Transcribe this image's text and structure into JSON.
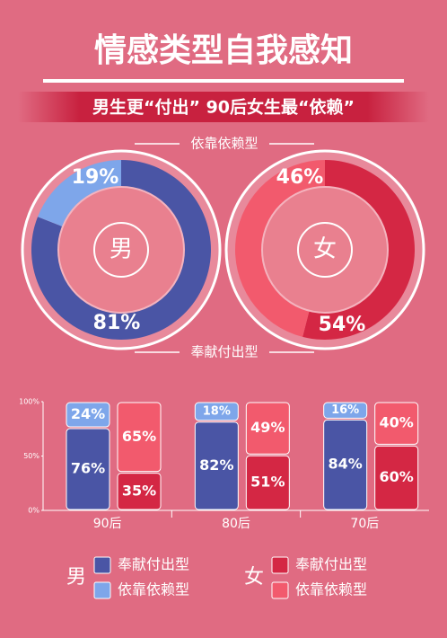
{
  "title": "情感类型自我感知",
  "subtitle": "男生更“付出” 90后女生最“依赖”",
  "chart_data": [
    {
      "type": "donut",
      "center_label": "男",
      "categories": [
        "奉献付出型",
        "依靠依赖型"
      ],
      "values": [
        81,
        19
      ],
      "value_labels": [
        "81%",
        "19%"
      ],
      "colors": [
        "#4a55a5",
        "#7ea6ea"
      ]
    },
    {
      "type": "donut",
      "center_label": "女",
      "values": [
        54,
        46
      ],
      "value_labels": [
        "54%",
        "46%"
      ],
      "colors": [
        "#d42744",
        "#f25a6d"
      ]
    },
    {
      "type": "stacked_bar",
      "categories": [
        "90后",
        "80后",
        "70后"
      ],
      "ylim": [
        0,
        100
      ],
      "yticks": [
        {
          "value": 0,
          "label": "0%"
        },
        {
          "value": 50,
          "label": "50%"
        },
        {
          "value": 100,
          "label": "100%"
        }
      ],
      "series_groups": [
        {
          "name": "男",
          "series": [
            {
              "name": "奉献付出型",
              "color": "#4a55a5",
              "values": [
                76,
                82,
                84
              ],
              "value_labels": [
                "76%",
                "82%",
                "84%"
              ]
            },
            {
              "name": "依靠依赖型",
              "color": "#7ea6ea",
              "values": [
                24,
                18,
                16
              ],
              "value_labels": [
                "24%",
                "18%",
                "16%"
              ]
            }
          ]
        },
        {
          "name": "女",
          "series": [
            {
              "name": "奉献付出型",
              "color": "#d42744",
              "values": [
                35,
                51,
                60
              ],
              "value_labels": [
                "35%",
                "51%",
                "60%"
              ]
            },
            {
              "name": "依靠依赖型",
              "color": "#f25a6d",
              "values": [
                65,
                49,
                40
              ],
              "value_labels": [
                "65%",
                "49%",
                "40%"
              ]
            }
          ]
        }
      ]
    }
  ]
}
